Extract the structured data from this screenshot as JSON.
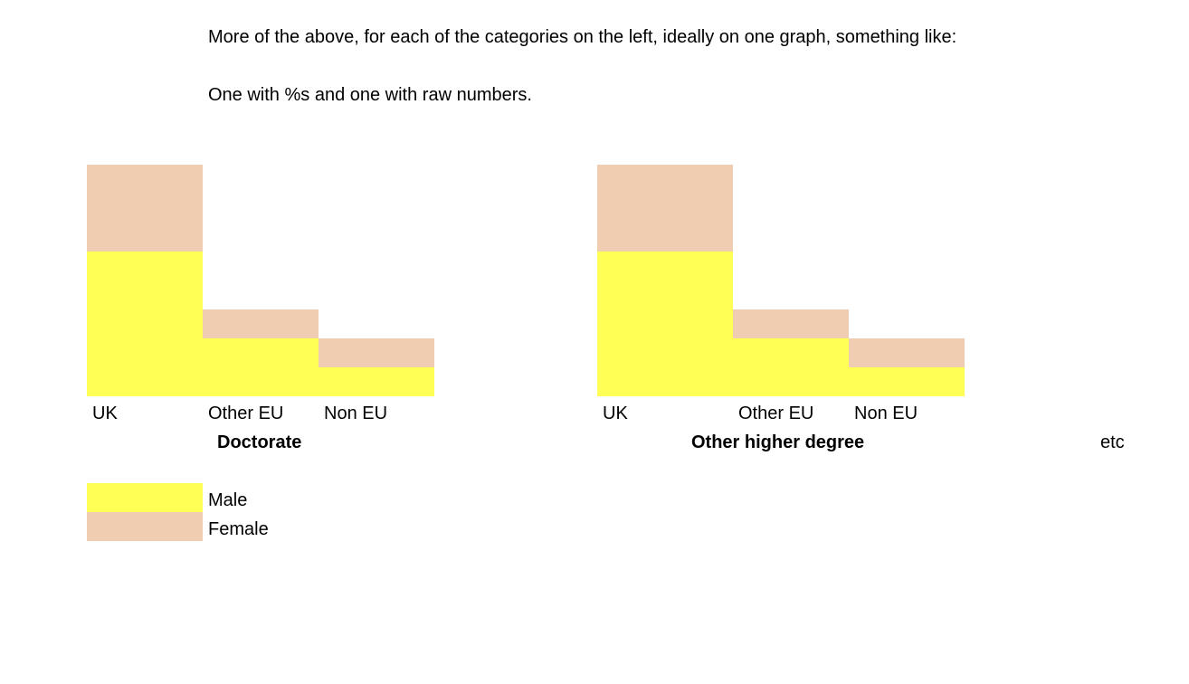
{
  "intro": {
    "line1": "More of the above, for each of the categories on the left, ideally on one graph, something like:",
    "line2": "One with %s and one with raw numbers."
  },
  "colors": {
    "male": "#FFFF55",
    "female": "#F0CCB0"
  },
  "chart_data": [
    {
      "type": "bar",
      "stacked": true,
      "title": "Doctorate",
      "categories": [
        "UK",
        "Other EU",
        "Non EU"
      ],
      "series": [
        {
          "name": "Male",
          "values": [
            5,
            2,
            1
          ]
        },
        {
          "name": "Female",
          "values": [
            3,
            1,
            1
          ]
        }
      ],
      "ylim": [
        0,
        8
      ],
      "grid": false,
      "legend": "bottom-left"
    },
    {
      "type": "bar",
      "stacked": true,
      "title": "Other higher degree",
      "categories": [
        "UK",
        "Other EU",
        "Non EU"
      ],
      "series": [
        {
          "name": "Male",
          "values": [
            5,
            2,
            1
          ]
        },
        {
          "name": "Female",
          "values": [
            3,
            1,
            1
          ]
        }
      ],
      "ylim": [
        0,
        8
      ],
      "grid": false,
      "legend": "bottom-left"
    }
  ],
  "etc_label": "etc",
  "legend": {
    "male_label": "Male",
    "female_label": "Female"
  }
}
